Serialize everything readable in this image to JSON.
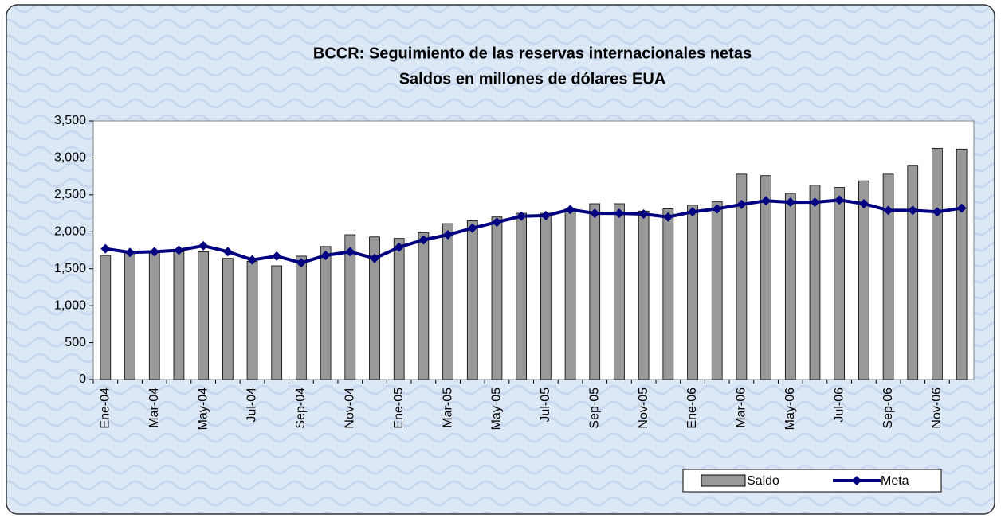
{
  "chart_data": {
    "type": "bar-line",
    "title": "BCCR: Seguimiento  de las reservas internacionales netas",
    "subtitle": "Saldos en millones de dólares EUA",
    "categories": [
      "Ene-04",
      null,
      "Mar-04",
      null,
      "May-04",
      null,
      "Jul-04",
      null,
      "Sep-04",
      null,
      "Nov-04",
      null,
      "Ene-05",
      null,
      "Mar-05",
      null,
      "May-05",
      null,
      "Jul-05",
      null,
      "Sep-05",
      null,
      "Nov-05",
      null,
      "Ene-06",
      null,
      "Mar-06",
      null,
      "May-06",
      null,
      "Jul-06",
      null,
      "Sep-06",
      null,
      "Nov-06",
      null
    ],
    "series": [
      {
        "name": "Saldo",
        "type": "bar",
        "color": "#999999",
        "values": [
          1680,
          1710,
          1730,
          1730,
          1730,
          1640,
          1600,
          1540,
          1670,
          1800,
          1960,
          1930,
          1910,
          1990,
          2110,
          2150,
          2200,
          2250,
          2250,
          2310,
          2380,
          2380,
          2280,
          2310,
          2360,
          2410,
          2780,
          2760,
          2520,
          2630,
          2600,
          2690,
          2780,
          2900,
          3130,
          3120
        ]
      },
      {
        "name": "Meta",
        "type": "line",
        "color": "#000080",
        "values": [
          1770,
          1720,
          1730,
          1750,
          1810,
          1730,
          1620,
          1670,
          1580,
          1680,
          1730,
          1640,
          1790,
          1890,
          1960,
          2050,
          2130,
          2210,
          2220,
          2300,
          2250,
          2250,
          2240,
          2200,
          2270,
          2310,
          2370,
          2420,
          2400,
          2400,
          2430,
          2380,
          2290,
          2290,
          2270,
          2320
        ]
      }
    ],
    "ylim": [
      0,
      3500
    ],
    "yticks": [
      0,
      500,
      {
        "value": 1000,
        "label": "1,000"
      },
      {
        "value": 1500,
        "label": "1,500"
      },
      {
        "value": 2000,
        "label": "2,000"
      },
      {
        "value": 2500,
        "label": "2,500"
      },
      {
        "value": 3000,
        "label": "3,000"
      },
      {
        "value": 3500,
        "label": "3,500"
      }
    ],
    "legend": "bottom-right"
  }
}
